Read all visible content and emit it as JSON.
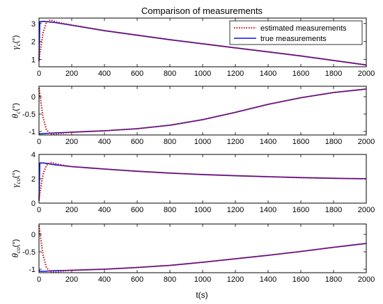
{
  "title": "Comparison of measurements",
  "xlabel": "t(s)",
  "legend": {
    "position": "top-right",
    "estimated_label": "estimated measurements",
    "true_label": "true measurements"
  },
  "colors": {
    "estimated": "#c0101a",
    "true": "#1010d8",
    "axes": "#000000",
    "background": "#ffffff"
  },
  "chart_data": [
    {
      "type": "line",
      "ylabel": {
        "symbol": "γ",
        "sub": "c",
        "unit": "(°)"
      },
      "xlim": [
        0,
        2000
      ],
      "ylim": [
        0.6,
        3.3
      ],
      "xticks": [
        0,
        200,
        400,
        600,
        800,
        1000,
        1200,
        1400,
        1600,
        1800,
        2000
      ],
      "yticks": [
        1,
        2,
        3
      ],
      "series": [
        {
          "name": "true measurements",
          "style": "solid",
          "x": [
            0,
            5,
            30,
            100,
            400,
            800,
            1200,
            1600,
            2000
          ],
          "y": [
            0.9,
            3.1,
            3.12,
            3.05,
            2.6,
            2.1,
            1.65,
            1.2,
            0.7
          ]
        },
        {
          "name": "estimated measurements",
          "style": "dotted",
          "x": [
            0,
            10,
            25,
            45,
            70,
            100,
            150,
            400,
            800,
            1200,
            1600,
            2000
          ],
          "y": [
            1.0,
            1.6,
            2.5,
            3.05,
            3.2,
            3.1,
            3.0,
            2.6,
            2.1,
            1.65,
            1.2,
            0.7
          ]
        }
      ]
    },
    {
      "type": "line",
      "ylabel": {
        "symbol": "θ",
        "sub": "c",
        "unit": "(°)"
      },
      "xlim": [
        0,
        2000
      ],
      "ylim": [
        -1.1,
        0.3
      ],
      "xticks": [
        0,
        200,
        400,
        600,
        800,
        1000,
        1200,
        1400,
        1600,
        1800,
        2000
      ],
      "yticks": [
        -1,
        -0.5,
        0
      ],
      "series": [
        {
          "name": "true measurements",
          "style": "solid",
          "x": [
            0,
            5,
            30,
            100,
            200,
            400,
            600,
            800,
            1000,
            1200,
            1400,
            1600,
            1800,
            2000
          ],
          "y": [
            -1.05,
            -1.07,
            -1.06,
            -1.04,
            -1.02,
            -0.98,
            -0.92,
            -0.82,
            -0.66,
            -0.45,
            -0.22,
            -0.03,
            0.12,
            0.22
          ]
        },
        {
          "name": "estimated measurements",
          "style": "dotted",
          "x": [
            0,
            10,
            25,
            45,
            70,
            100,
            150,
            200,
            400,
            600,
            800,
            1000,
            1200,
            1400,
            1600,
            1800,
            2000
          ],
          "y": [
            0.25,
            -0.1,
            -0.6,
            -0.95,
            -1.07,
            -1.07,
            -1.05,
            -1.02,
            -0.98,
            -0.92,
            -0.82,
            -0.66,
            -0.45,
            -0.22,
            -0.03,
            0.12,
            0.22
          ]
        }
      ]
    },
    {
      "type": "line",
      "ylabel": {
        "symbol": "γ",
        "sub": "co",
        "unit": "(°)"
      },
      "xlim": [
        0,
        2000
      ],
      "ylim": [
        0,
        4
      ],
      "xticks": [
        0,
        200,
        400,
        600,
        800,
        1000,
        1200,
        1400,
        1600,
        1800,
        2000
      ],
      "yticks": [
        0,
        2,
        4
      ],
      "series": [
        {
          "name": "true measurements",
          "style": "solid",
          "x": [
            0,
            5,
            30,
            100,
            200,
            400,
            600,
            800,
            1000,
            1200,
            1400,
            1600,
            1800,
            2000
          ],
          "y": [
            0.2,
            3.3,
            3.3,
            3.15,
            3.0,
            2.8,
            2.62,
            2.47,
            2.35,
            2.25,
            2.17,
            2.1,
            2.04,
            2.0
          ]
        },
        {
          "name": "estimated measurements",
          "style": "dotted",
          "x": [
            0,
            10,
            25,
            45,
            70,
            100,
            150,
            200,
            400,
            600,
            800,
            1000,
            1200,
            1400,
            1600,
            1800,
            2000
          ],
          "y": [
            0.2,
            1.2,
            2.4,
            3.1,
            3.35,
            3.25,
            3.1,
            3.0,
            2.8,
            2.62,
            2.47,
            2.35,
            2.25,
            2.17,
            2.1,
            2.04,
            2.0
          ]
        }
      ]
    },
    {
      "type": "line",
      "ylabel": {
        "symbol": "θ",
        "sub": "co",
        "unit": "(°)"
      },
      "xlim": [
        0,
        2000
      ],
      "ylim": [
        -1.1,
        0.3
      ],
      "xticks": [
        0,
        200,
        400,
        600,
        800,
        1000,
        1200,
        1400,
        1600,
        1800,
        2000
      ],
      "yticks": [
        -1,
        -0.5,
        0
      ],
      "series": [
        {
          "name": "true measurements",
          "style": "solid",
          "x": [
            0,
            5,
            30,
            100,
            200,
            400,
            600,
            800,
            1000,
            1200,
            1400,
            1600,
            1800,
            2000
          ],
          "y": [
            -1.02,
            -1.06,
            -1.06,
            -1.04,
            -1.03,
            -1.0,
            -0.95,
            -0.89,
            -0.8,
            -0.7,
            -0.6,
            -0.49,
            -0.37,
            -0.26
          ]
        },
        {
          "name": "estimated measurements",
          "style": "dotted",
          "x": [
            0,
            10,
            25,
            45,
            70,
            100,
            150,
            200,
            400,
            600,
            800,
            1000,
            1200,
            1400,
            1600,
            1800,
            2000
          ],
          "y": [
            0.25,
            -0.1,
            -0.6,
            -0.95,
            -1.08,
            -1.08,
            -1.05,
            -1.03,
            -1.0,
            -0.95,
            -0.89,
            -0.8,
            -0.7,
            -0.6,
            -0.49,
            -0.37,
            -0.26
          ]
        }
      ]
    }
  ]
}
